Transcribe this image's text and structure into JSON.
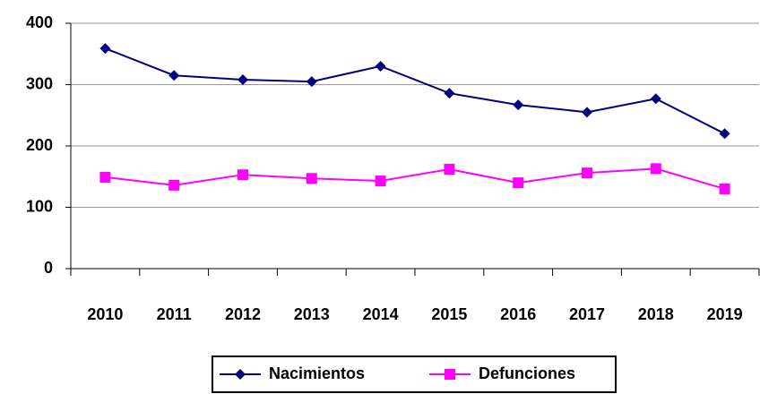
{
  "chart_data": {
    "type": "line",
    "categories": [
      "2010",
      "2011",
      "2012",
      "2013",
      "2014",
      "2015",
      "2016",
      "2017",
      "2018",
      "2019"
    ],
    "series": [
      {
        "name": "Nacimientos",
        "color": "#000080",
        "marker": "diamond",
        "values": [
          359,
          315,
          308,
          305,
          330,
          286,
          267,
          255,
          277,
          220
        ]
      },
      {
        "name": "Defunciones",
        "color": "#ff00ff",
        "marker": "square",
        "values": [
          149,
          136,
          153,
          147,
          143,
          162,
          140,
          156,
          163,
          130
        ]
      }
    ],
    "ylim": [
      0,
      400
    ],
    "yticks": [
      0,
      100,
      200,
      300,
      400
    ],
    "grid": true,
    "legend": "bottom"
  }
}
